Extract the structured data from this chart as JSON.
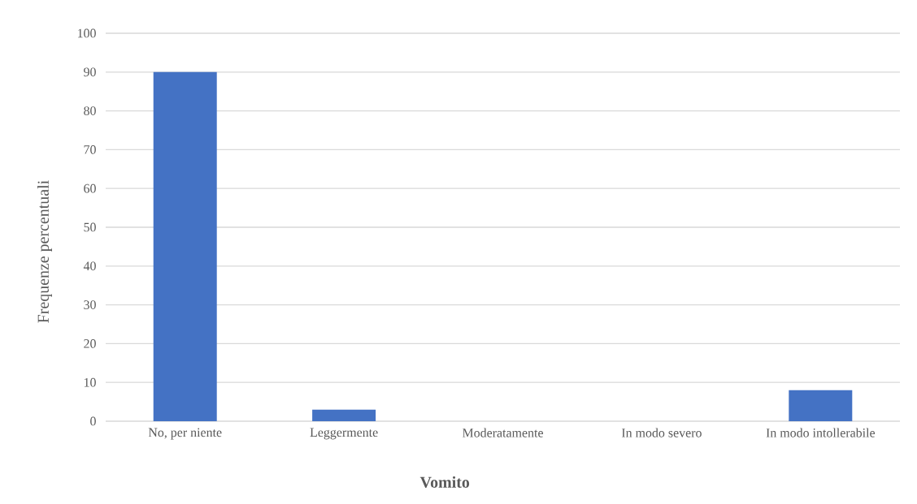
{
  "chart_data": {
    "type": "bar",
    "xlabel": "Vomito",
    "ylabel": "Frequenze percentuali",
    "categories": [
      "No, per niente",
      "Leggermente",
      "Moderatamente",
      "In modo severo",
      "In modo intollerabile"
    ],
    "values": [
      90,
      3,
      0,
      0,
      8
    ],
    "color": "#4472c4",
    "ylim": [
      0,
      100
    ],
    "yticks": [
      0,
      10,
      20,
      30,
      40,
      50,
      60,
      70,
      80,
      90,
      100
    ],
    "grid": "y"
  }
}
